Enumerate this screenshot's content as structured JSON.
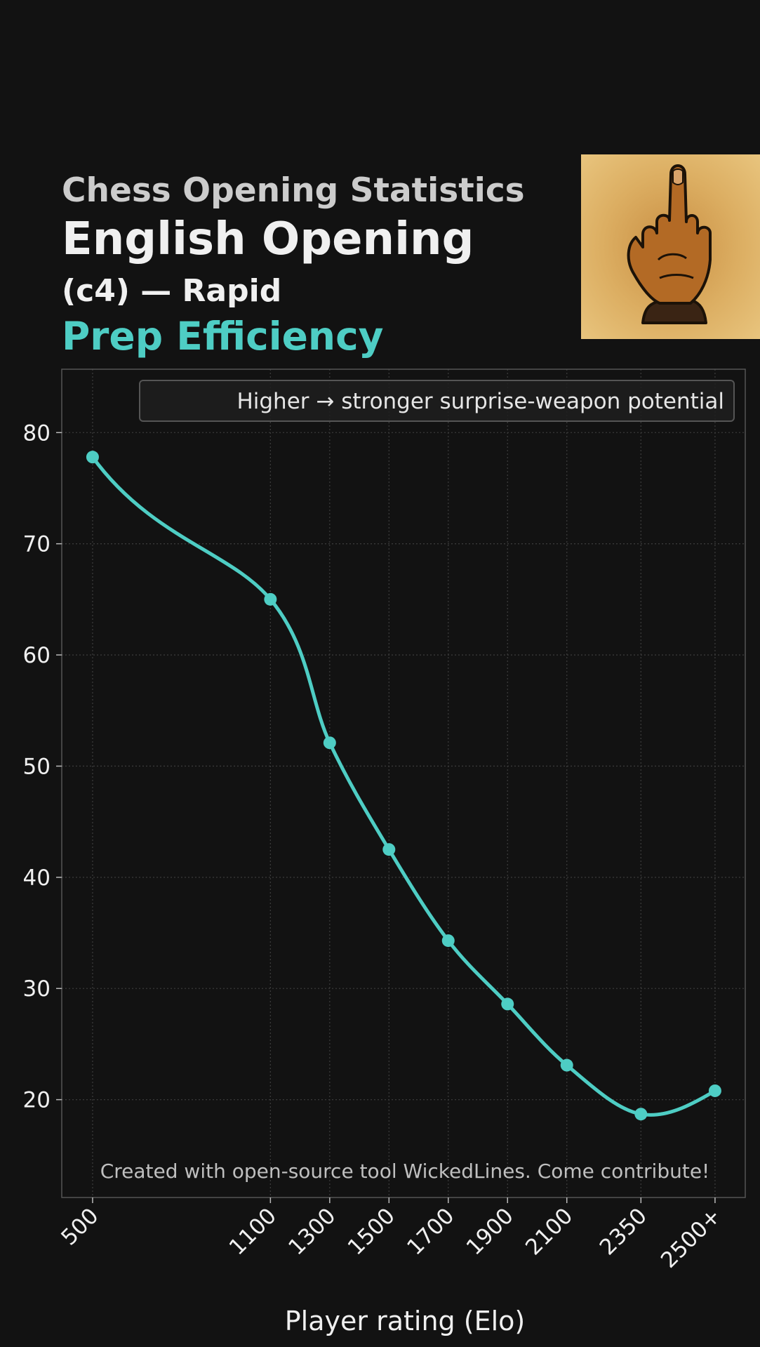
{
  "header": {
    "supertitle": "Chess Opening Statistics",
    "title": "English Opening",
    "subtitle": "(c4) — Rapid",
    "metric": "Prep Efficiency"
  },
  "thumbnail": {
    "icon": "middle-finger-hand-icon",
    "bg_color": "#e2b86a",
    "hand_color": "#b36a25"
  },
  "footer_note": "Created with open-source tool WickedLines. Come contribute!",
  "colors": {
    "background": "#121212",
    "accent": "#4ecdc4",
    "grid": "#3a3a3a",
    "frame": "#555555",
    "text": "#f0f0f0",
    "muted_text": "#cccccc"
  },
  "chart_data": {
    "type": "line",
    "title": "Prep Efficiency",
    "xlabel": "Player rating (Elo)",
    "ylabel": "",
    "x": [
      500,
      1100,
      1300,
      1500,
      1700,
      1900,
      2100,
      2350,
      2600
    ],
    "x_tick_labels": [
      "500",
      "1100",
      "1300",
      "1500",
      "1700",
      "1900",
      "2100",
      "2350",
      "2500+"
    ],
    "series": [
      {
        "values": [
          77.8,
          65.0,
          52.1,
          42.5,
          34.3,
          28.6,
          23.1,
          18.7,
          20.8
        ]
      }
    ],
    "xlim": [
      396,
      2702
    ],
    "ylim": [
      11.2,
      85.7
    ],
    "y_ticks": [
      20,
      30,
      40,
      50,
      60,
      70,
      80
    ],
    "smooth": true,
    "grid": true,
    "legend": {
      "text": "Higher → stronger surprise-weapon potential",
      "placement": "top-right"
    }
  }
}
